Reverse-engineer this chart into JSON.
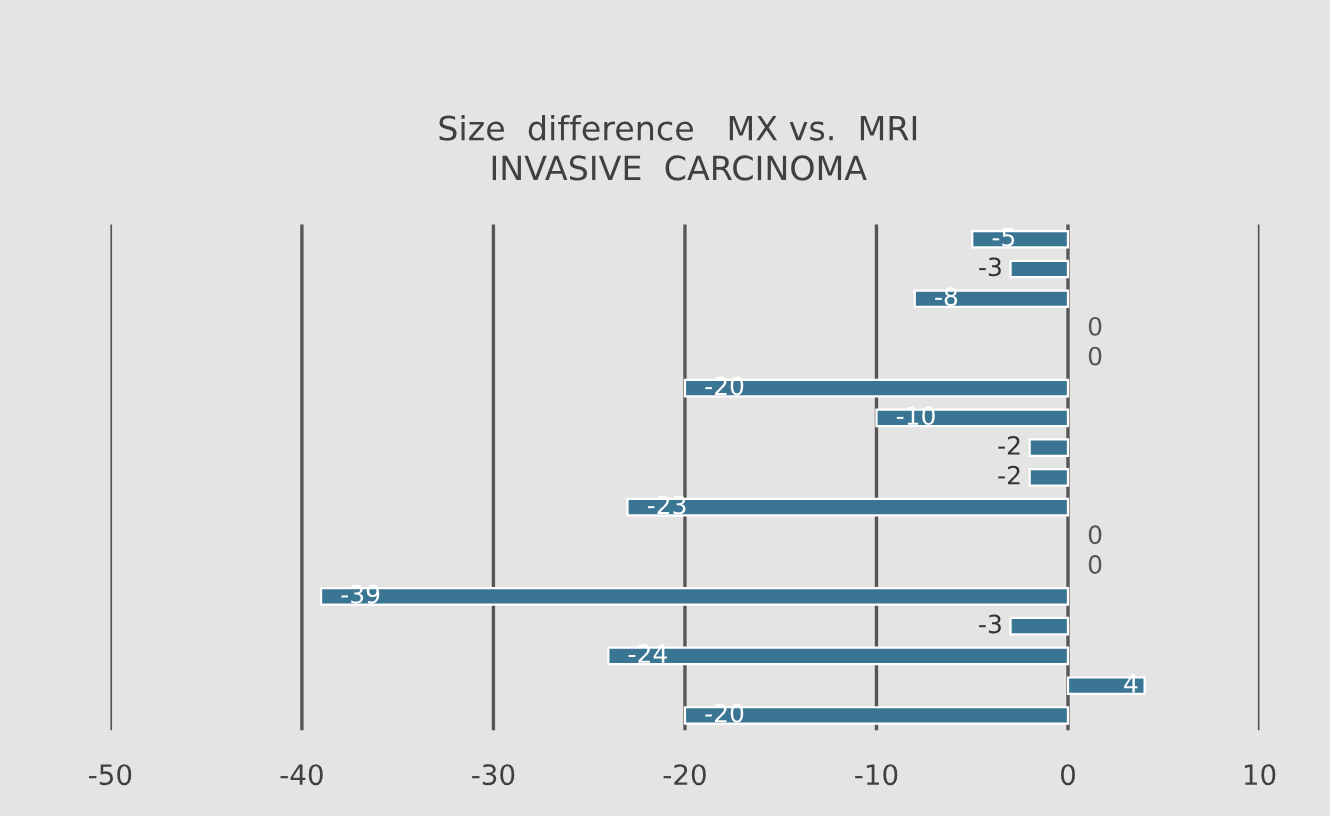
{
  "chart_data": {
    "type": "bar",
    "orientation": "horizontal",
    "title": "Size  difference   MX vs.  MRI\nINVASIVE  CARCINOMA",
    "categories": [
      null,
      null,
      null,
      null,
      null,
      null,
      null,
      null,
      null,
      null,
      null,
      null,
      null,
      null,
      null,
      null,
      null
    ],
    "values": [
      -5,
      -3,
      -8,
      0,
      0,
      -20,
      -10,
      -2,
      -2,
      -23,
      0,
      0,
      -39,
      -3,
      -24,
      4,
      -20
    ],
    "color": "#3a7594",
    "xlim": [
      -50,
      10
    ],
    "xticks": [
      -50,
      -40,
      -30,
      -20,
      -10,
      0,
      10
    ],
    "grid": "x",
    "data_labels": true
  }
}
